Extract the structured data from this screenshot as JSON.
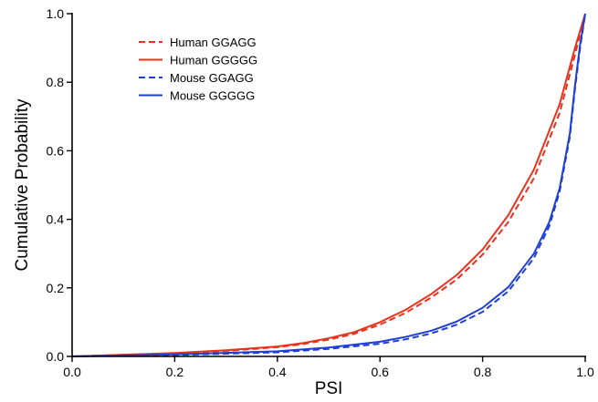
{
  "chart_data": {
    "type": "line",
    "xlabel": "PSI",
    "ylabel": "Cumulative Probability",
    "xlim": [
      0,
      1
    ],
    "ylim": [
      0,
      1
    ],
    "xticks": [
      "0.0",
      "0.2",
      "0.4",
      "0.6",
      "0.8",
      "1.0"
    ],
    "yticks": [
      "0.0",
      "0.2",
      "0.4",
      "0.6",
      "0.8",
      "1.0"
    ],
    "grid": false,
    "legend_position": "top-left",
    "series": [
      {
        "name": "Human GGAGG",
        "color": "#e8321e",
        "dashed": true,
        "x": [
          0.0,
          0.1,
          0.2,
          0.3,
          0.4,
          0.45,
          0.5,
          0.55,
          0.6,
          0.65,
          0.7,
          0.75,
          0.8,
          0.85,
          0.9,
          0.95,
          0.98,
          1.0
        ],
        "y": [
          0.0,
          0.004,
          0.009,
          0.016,
          0.027,
          0.036,
          0.049,
          0.066,
          0.093,
          0.127,
          0.172,
          0.225,
          0.297,
          0.392,
          0.52,
          0.71,
          0.88,
          1.0
        ]
      },
      {
        "name": "Human GGGGG",
        "color": "#e8321e",
        "dashed": false,
        "x": [
          0.0,
          0.1,
          0.2,
          0.3,
          0.4,
          0.45,
          0.5,
          0.55,
          0.6,
          0.65,
          0.7,
          0.75,
          0.8,
          0.85,
          0.9,
          0.95,
          0.98,
          1.0
        ],
        "y": [
          0.0,
          0.005,
          0.01,
          0.018,
          0.029,
          0.039,
          0.053,
          0.071,
          0.1,
          0.136,
          0.182,
          0.238,
          0.312,
          0.412,
          0.545,
          0.735,
          0.9,
          1.0
        ]
      },
      {
        "name": "Mouse GGAGG",
        "color": "#1f3fd4",
        "dashed": true,
        "x": [
          0.0,
          0.2,
          0.4,
          0.5,
          0.6,
          0.65,
          0.7,
          0.75,
          0.8,
          0.85,
          0.9,
          0.93,
          0.95,
          0.97,
          0.98,
          0.99,
          1.0
        ],
        "y": [
          0.0,
          0.004,
          0.012,
          0.022,
          0.037,
          0.05,
          0.067,
          0.093,
          0.13,
          0.19,
          0.287,
          0.38,
          0.48,
          0.64,
          0.78,
          0.9,
          1.0
        ]
      },
      {
        "name": "Mouse GGGGG",
        "color": "#1f3fd4",
        "dashed": false,
        "x": [
          0.0,
          0.2,
          0.4,
          0.5,
          0.6,
          0.65,
          0.7,
          0.75,
          0.8,
          0.85,
          0.9,
          0.93,
          0.95,
          0.97,
          0.98,
          0.99,
          1.0
        ],
        "y": [
          0.0,
          0.006,
          0.015,
          0.026,
          0.043,
          0.057,
          0.075,
          0.102,
          0.142,
          0.202,
          0.3,
          0.392,
          0.49,
          0.65,
          0.79,
          0.91,
          1.0
        ]
      }
    ]
  }
}
